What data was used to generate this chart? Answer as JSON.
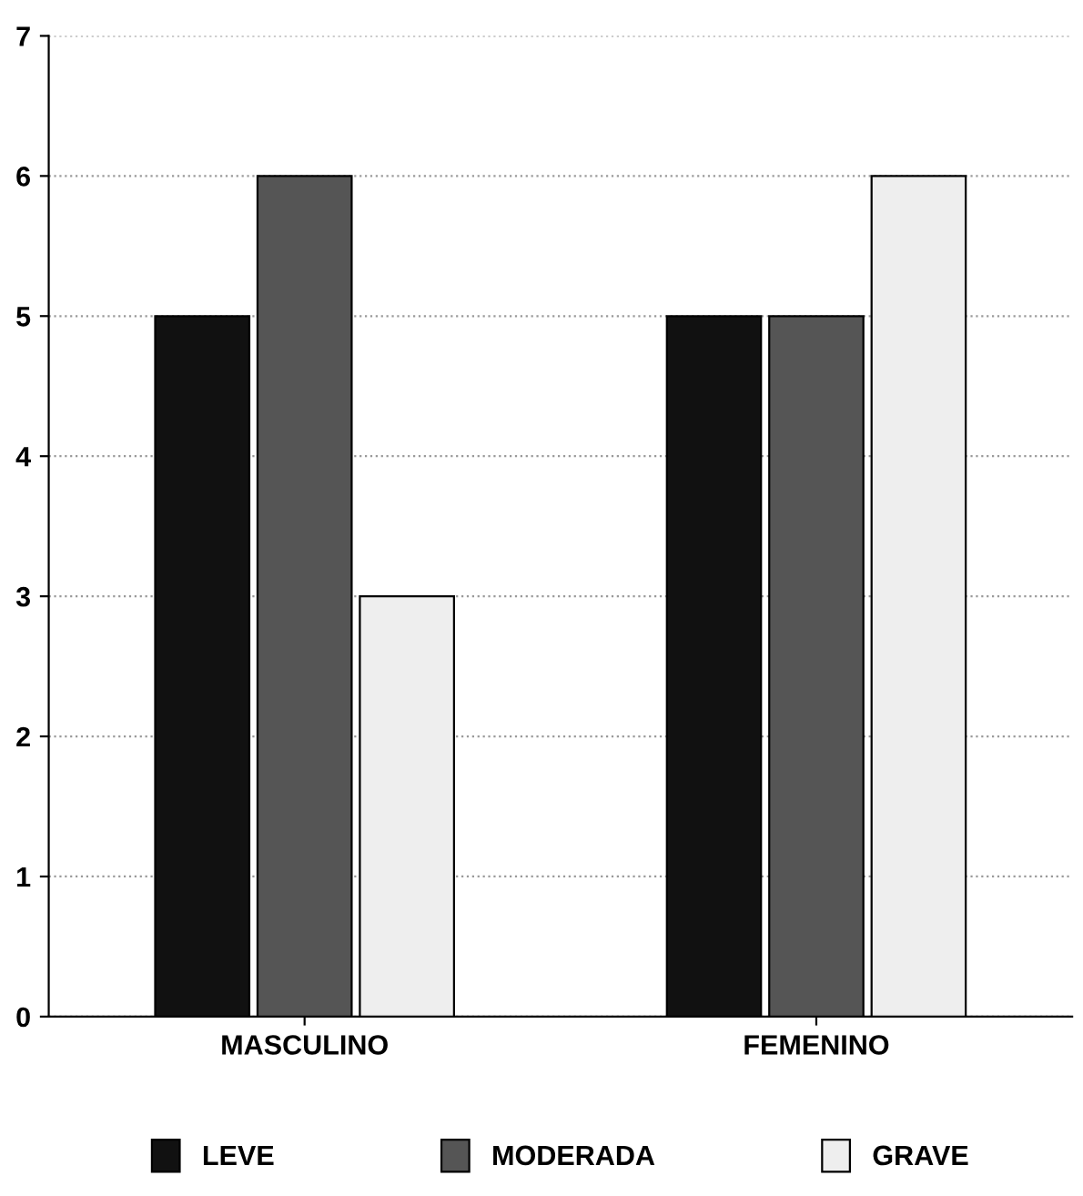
{
  "chart_data": {
    "type": "bar",
    "categories": [
      "MASCULINO",
      "FEMENINO"
    ],
    "series": [
      {
        "name": "LEVE",
        "color": "#111111",
        "values": [
          5,
          5
        ]
      },
      {
        "name": "MODERADA",
        "color": "#555555",
        "values": [
          6,
          5
        ]
      },
      {
        "name": "GRAVE",
        "color": "#eeeeee",
        "values": [
          3,
          6
        ]
      }
    ],
    "ylim": [
      0,
      7
    ],
    "yticks": [
      0,
      1,
      2,
      3,
      4,
      5,
      6,
      7
    ],
    "grid": "y",
    "legend": "bottom"
  }
}
